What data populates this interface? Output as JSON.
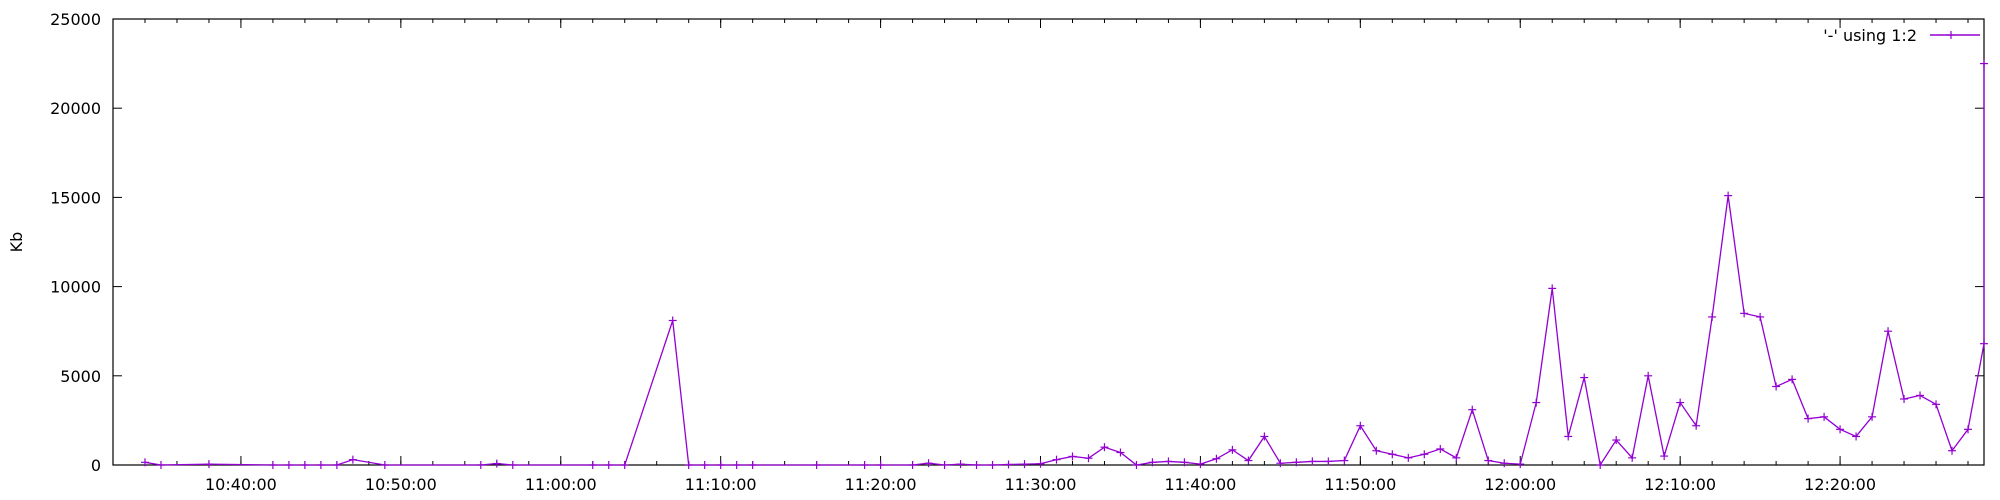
{
  "chart_data": {
    "type": "line",
    "title": "",
    "xlabel": "",
    "ylabel": "Kb",
    "ylim": [
      0,
      25000
    ],
    "xlim": [
      "10:32:00",
      "12:29:00"
    ],
    "yticks": [
      0,
      5000,
      10000,
      15000,
      20000,
      25000
    ],
    "xticks": [
      "10:40:00",
      "10:50:00",
      "11:00:00",
      "11:10:00",
      "11:20:00",
      "11:30:00",
      "11:40:00",
      "11:50:00",
      "12:00:00",
      "12:10:00",
      "12:20:00"
    ],
    "legend_position": "top-right",
    "grid": false,
    "series": [
      {
        "name": "'-' using 1:2",
        "color": "#9400d3",
        "x": [
          "10:34:00",
          "10:35:00",
          "10:38:00",
          "10:42:00",
          "10:43:00",
          "10:44:00",
          "10:45:00",
          "10:46:00",
          "10:47:00",
          "10:49:00",
          "10:55:00",
          "10:56:00",
          "10:57:00",
          "11:02:00",
          "11:03:00",
          "11:04:00",
          "11:07:00",
          "11:08:00",
          "11:09:00",
          "11:10:00",
          "11:11:00",
          "11:12:00",
          "11:16:00",
          "11:19:00",
          "11:20:00",
          "11:22:00",
          "11:23:00",
          "11:24:00",
          "11:25:00",
          "11:26:00",
          "11:27:00",
          "11:28:00",
          "11:29:00",
          "11:30:00",
          "11:31:00",
          "11:32:00",
          "11:33:00",
          "11:34:00",
          "11:35:00",
          "11:36:00",
          "11:37:00",
          "11:38:00",
          "11:39:00",
          "11:40:00",
          "11:41:00",
          "11:42:00",
          "11:43:00",
          "11:44:00",
          "11:45:00",
          "11:46:00",
          "11:47:00",
          "11:48:00",
          "11:49:00",
          "11:50:00",
          "11:51:00",
          "11:52:00",
          "11:53:00",
          "11:54:00",
          "11:55:00",
          "11:56:00",
          "11:57:00",
          "11:58:00",
          "11:59:00",
          "12:00:00",
          "12:01:00",
          "12:02:00",
          "12:03:00",
          "12:04:00",
          "12:05:00",
          "12:06:00",
          "12:07:00",
          "12:08:00",
          "12:09:00",
          "12:10:00",
          "12:11:00",
          "12:12:00",
          "12:13:00",
          "12:14:00",
          "12:15:00",
          "12:16:00",
          "12:17:00",
          "12:18:00",
          "12:19:00",
          "12:20:00",
          "12:21:00",
          "12:22:00",
          "12:23:00",
          "12:24:00",
          "12:25:00",
          "12:26:00",
          "12:27:00",
          "12:28:00",
          "12:29:00",
          "12:29:00"
        ],
        "y": [
          150,
          0,
          50,
          0,
          0,
          0,
          0,
          0,
          300,
          0,
          0,
          80,
          0,
          0,
          0,
          0,
          8100,
          0,
          0,
          0,
          0,
          0,
          0,
          0,
          0,
          0,
          100,
          0,
          50,
          0,
          0,
          30,
          50,
          70,
          300,
          480,
          380,
          1000,
          700,
          0,
          150,
          200,
          150,
          50,
          350,
          850,
          250,
          1600,
          100,
          150,
          200,
          200,
          250,
          2200,
          800,
          600,
          400,
          600,
          900,
          400,
          3100,
          250,
          100,
          50,
          3500,
          9900,
          1600,
          4900,
          0,
          1400,
          400,
          5000,
          500,
          3500,
          2200,
          8300,
          15100,
          8500,
          8300,
          4400,
          4800,
          2600,
          2700,
          2000,
          1600,
          2700,
          7500,
          3700,
          3900,
          3400,
          800,
          2000,
          6800,
          22500
        ]
      }
    ]
  }
}
